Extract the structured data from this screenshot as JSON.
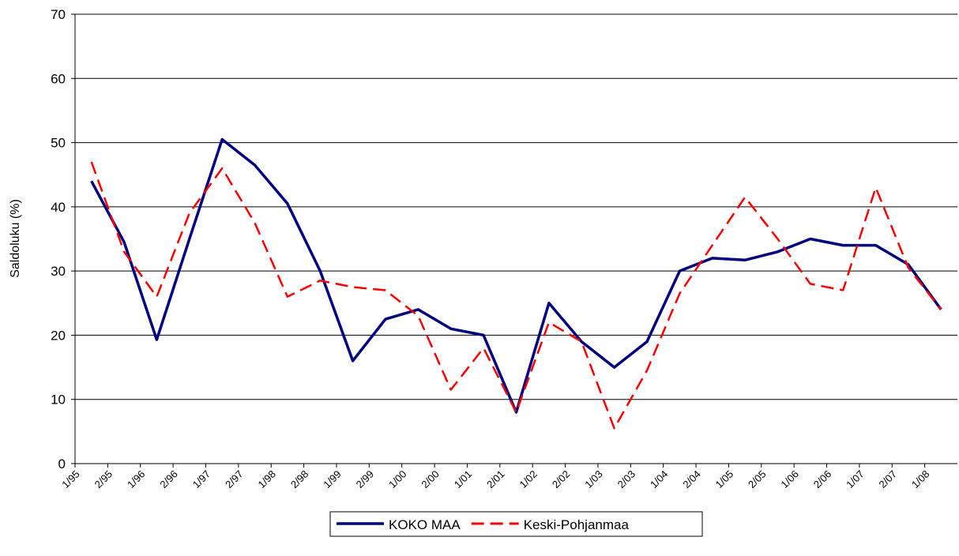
{
  "chart_data": {
    "type": "line",
    "y_label": "Saldoluku (%)",
    "categories": [
      "1/95",
      "2/95",
      "1/96",
      "2/96",
      "1/97",
      "2/97",
      "1/98",
      "2/98",
      "1/99",
      "2/99",
      "1/00",
      "2/00",
      "1/01",
      "2/01",
      "1/02",
      "2/02",
      "1/03",
      "2/03",
      "1/04",
      "2/04",
      "1/05",
      "2/05",
      "1/06",
      "2/06",
      "1/07",
      "2/07",
      "1/08"
    ],
    "series": [
      {
        "name": "KOKO MAA",
        "color": "#000080",
        "dash": false,
        "values": [
          44,
          34.5,
          19.3,
          35,
          50.5,
          46.5,
          40.5,
          30,
          16,
          22.5,
          24,
          21,
          20,
          8,
          25,
          19,
          15,
          19,
          30,
          32,
          31.7,
          33,
          35,
          34,
          34,
          31,
          24
        ]
      },
      {
        "name": "Keski-Pohjanmaa",
        "color": "#ff0000",
        "dash": true,
        "values": [
          47,
          33,
          26,
          39,
          46,
          37.5,
          26,
          28.5,
          27.5,
          27,
          23,
          11.5,
          18,
          8,
          22,
          19,
          5.5,
          14.5,
          26.5,
          34,
          41.5,
          35,
          28,
          27,
          43,
          30.5,
          24
        ]
      }
    ],
    "ylim": [
      0,
      70
    ],
    "yticks": [
      0,
      10,
      20,
      30,
      40,
      50,
      60,
      70
    ],
    "grid": true,
    "legend": "bottom"
  }
}
